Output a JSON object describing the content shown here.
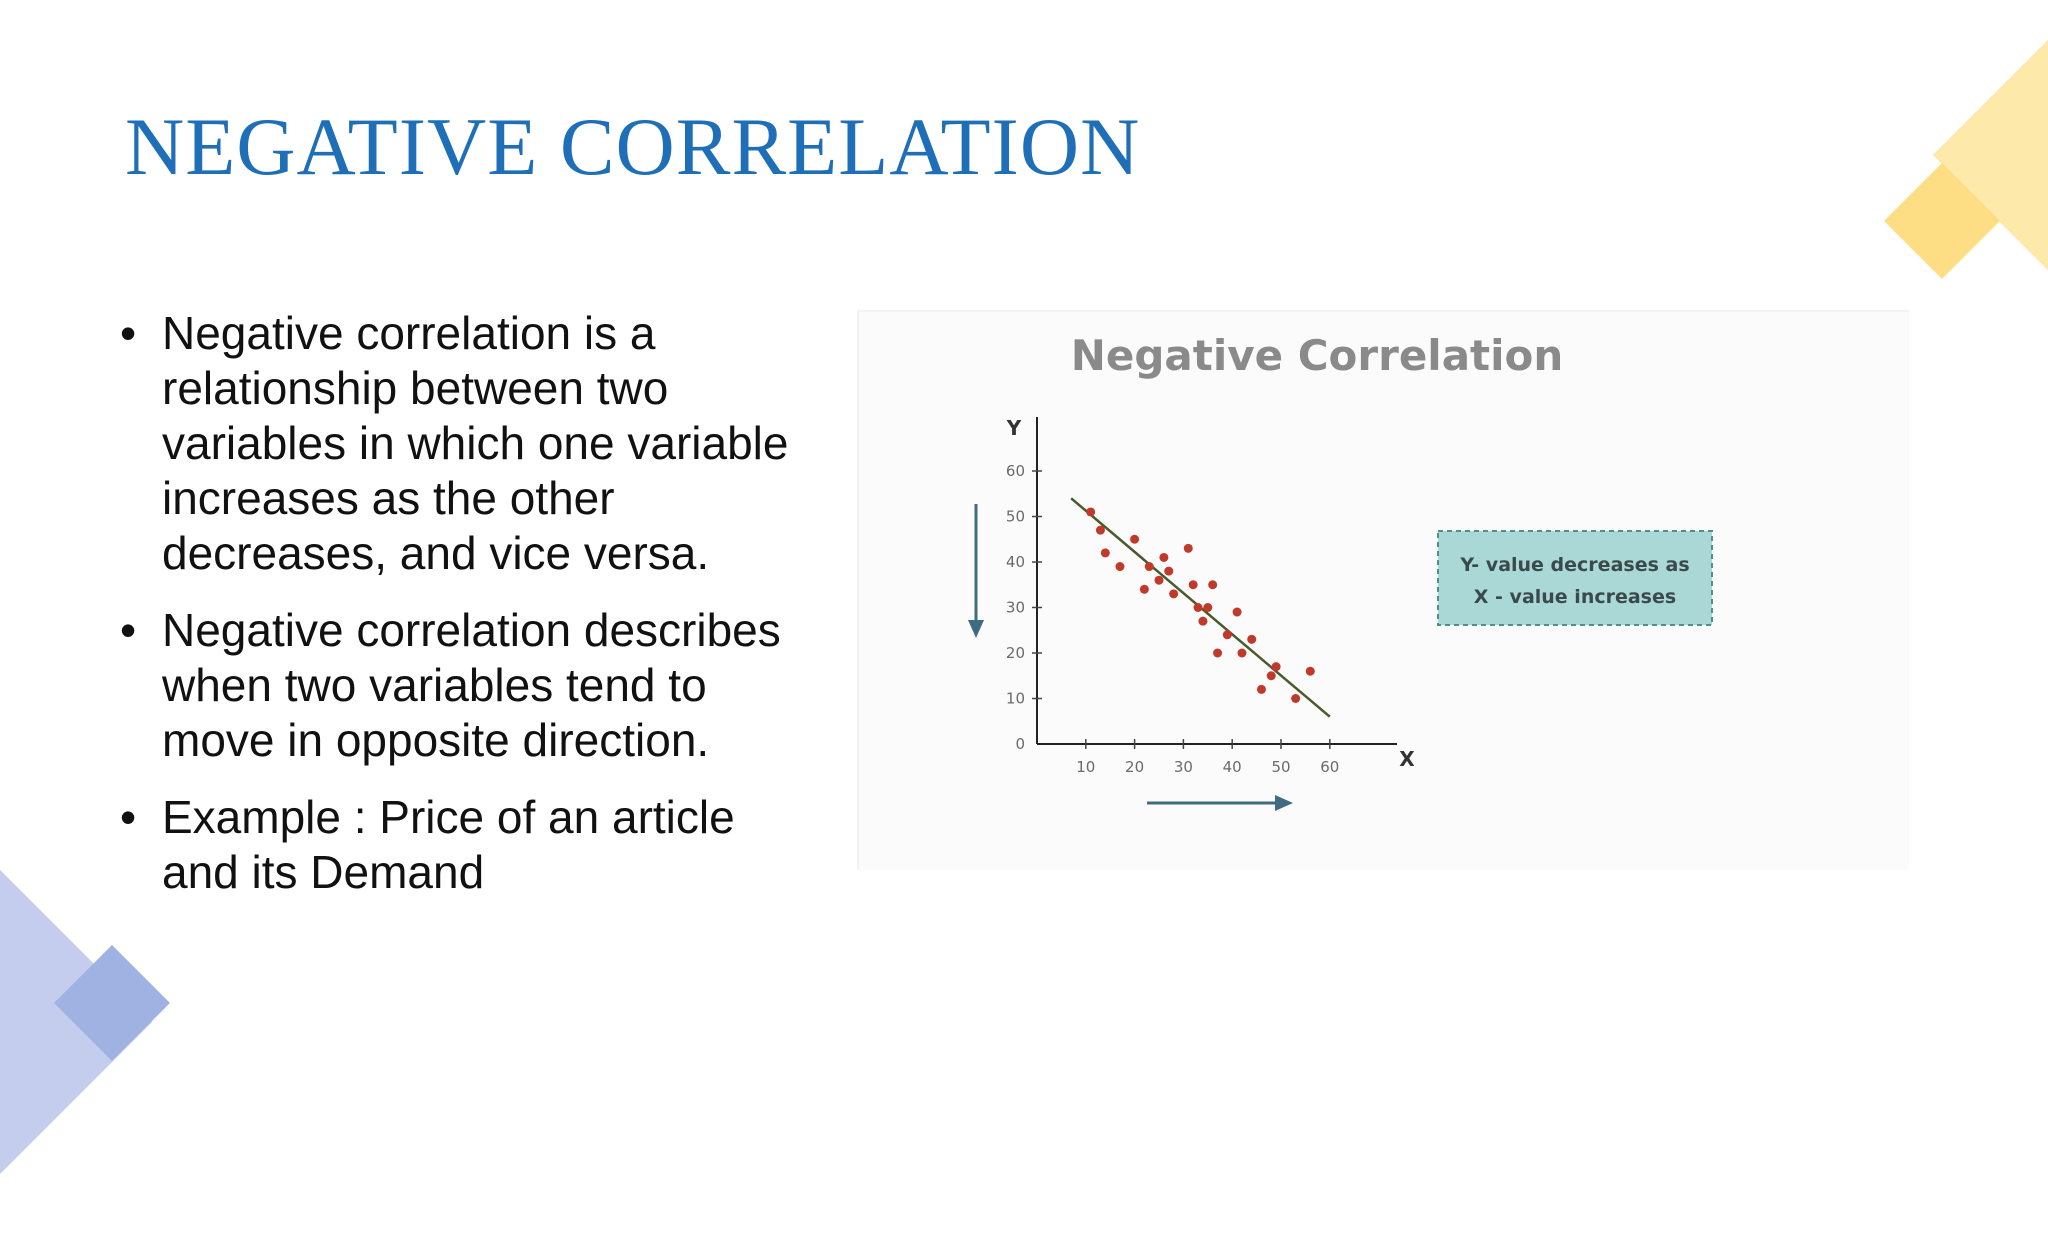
{
  "slide": {
    "title": "NEGATIVE CORRELATION",
    "bullets": [
      "Negative correlation is a relationship between two variables in which one variable increases as the other decreases, and vice versa.",
      "Negative correlation describes when two variables tend to move in opposite direction.",
      "Example : Price of an article and its Demand"
    ],
    "bullet_symbol": "•"
  },
  "colors": {
    "title": "#1f6fb8",
    "text": "#111111",
    "deco_yellow": "#fde7a0",
    "deco_blue": "#c5cdee",
    "points": "#c0392b",
    "trend_line": "#4a5a2a",
    "note_fill": "#a9d8d6"
  },
  "chart_data": {
    "type": "scatter",
    "title": "Negative Correlation",
    "xlabel": "X",
    "ylabel": "Y",
    "xlim": [
      0,
      70
    ],
    "ylim": [
      0,
      65
    ],
    "xticks": [
      "10",
      "20",
      "30",
      "40",
      "50",
      "60"
    ],
    "yticks": [
      "0",
      "10",
      "20",
      "30",
      "40",
      "50",
      "60"
    ],
    "points": [
      [
        11,
        51
      ],
      [
        13,
        47
      ],
      [
        14,
        42
      ],
      [
        17,
        39
      ],
      [
        20,
        45
      ],
      [
        22,
        34
      ],
      [
        23,
        39
      ],
      [
        25,
        36
      ],
      [
        26,
        41
      ],
      [
        27,
        38
      ],
      [
        28,
        33
      ],
      [
        31,
        43
      ],
      [
        32,
        35
      ],
      [
        33,
        30
      ],
      [
        34,
        27
      ],
      [
        35,
        30
      ],
      [
        36,
        35
      ],
      [
        37,
        20
      ],
      [
        39,
        24
      ],
      [
        41,
        29
      ],
      [
        42,
        20
      ],
      [
        44,
        23
      ],
      [
        46,
        12
      ],
      [
        48,
        15
      ],
      [
        49,
        17
      ],
      [
        53,
        10
      ],
      [
        56,
        16
      ]
    ],
    "trend_line": [
      [
        7,
        54
      ],
      [
        60,
        6
      ]
    ],
    "annotation": [
      "Y- value decreases as",
      "X - value increases"
    ],
    "arrows": [
      "y-down",
      "x-right"
    ],
    "legend": "none",
    "grid": false
  }
}
